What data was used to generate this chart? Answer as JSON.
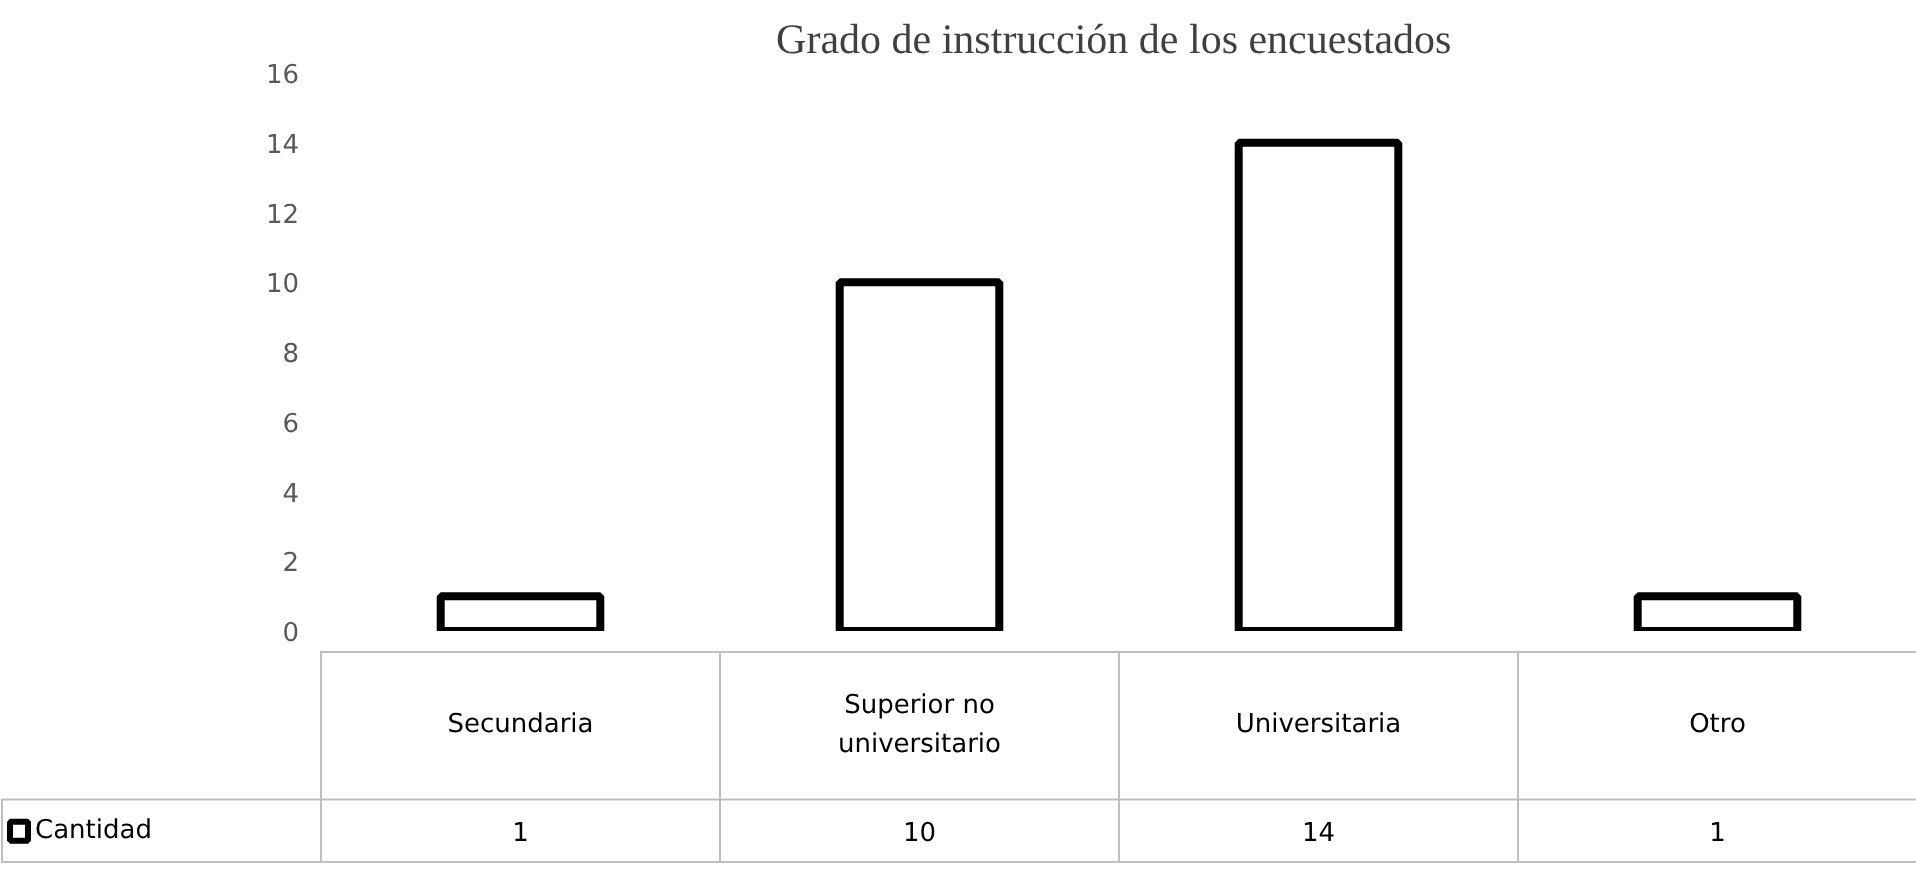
{
  "chart_data": {
    "type": "bar",
    "title": "Grado de instrucción  de los encuestados",
    "categories": [
      "Secundaria",
      "Superior no universitario",
      "Universitaria",
      "Otro"
    ],
    "series": [
      {
        "name": "Cantidad",
        "color": "#ffffff",
        "values": [
          1,
          10,
          14,
          1
        ]
      }
    ],
    "ylim": [
      0,
      16
    ],
    "yticks": [
      0,
      2,
      4,
      6,
      8,
      10,
      12,
      14,
      16
    ],
    "grid": false,
    "data_labels": true,
    "legend": "bottom"
  }
}
